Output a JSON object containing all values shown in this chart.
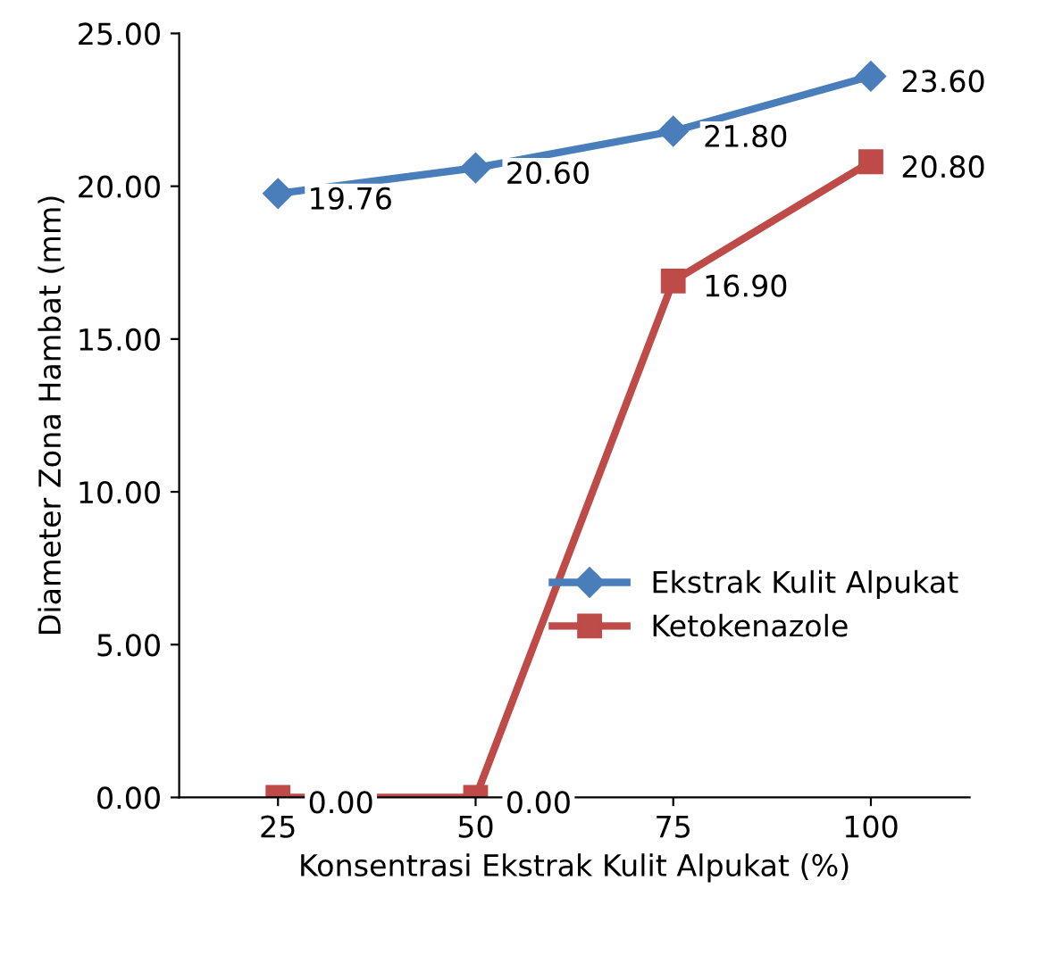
{
  "chart_data": {
    "type": "line",
    "xlabel": "Konsentrasi Ekstrak Kulit Alpukat (%)",
    "ylabel": "Diameter Zona Hambat (mm)",
    "categories": [
      "25",
      "50",
      "75",
      "100"
    ],
    "series": [
      {
        "name": "Ekstrak Kulit Alpukat",
        "color": "#4a7ebb",
        "marker": "diamond",
        "values": [
          19.76,
          20.6,
          21.8,
          23.6
        ],
        "value_labels": [
          "19.76",
          "20.60",
          "21.80",
          "23.60"
        ]
      },
      {
        "name": "Ketokenazole",
        "color": "#be4b48",
        "marker": "square",
        "values": [
          0,
          0,
          16.9,
          20.8
        ],
        "value_labels": [
          "0.00",
          "0.00",
          "16.90",
          "20.80"
        ]
      }
    ],
    "ylim": [
      0,
      25
    ],
    "yticks": [
      {
        "value": 0,
        "label": "0.00"
      },
      {
        "value": 5,
        "label": "5.00"
      },
      {
        "value": 10,
        "label": "10.00"
      },
      {
        "value": 15,
        "label": "15.00"
      },
      {
        "value": 20,
        "label": "20.00"
      },
      {
        "value": 25,
        "label": "25.00"
      }
    ],
    "grid": false,
    "legend": "right",
    "line_style": "solid"
  }
}
